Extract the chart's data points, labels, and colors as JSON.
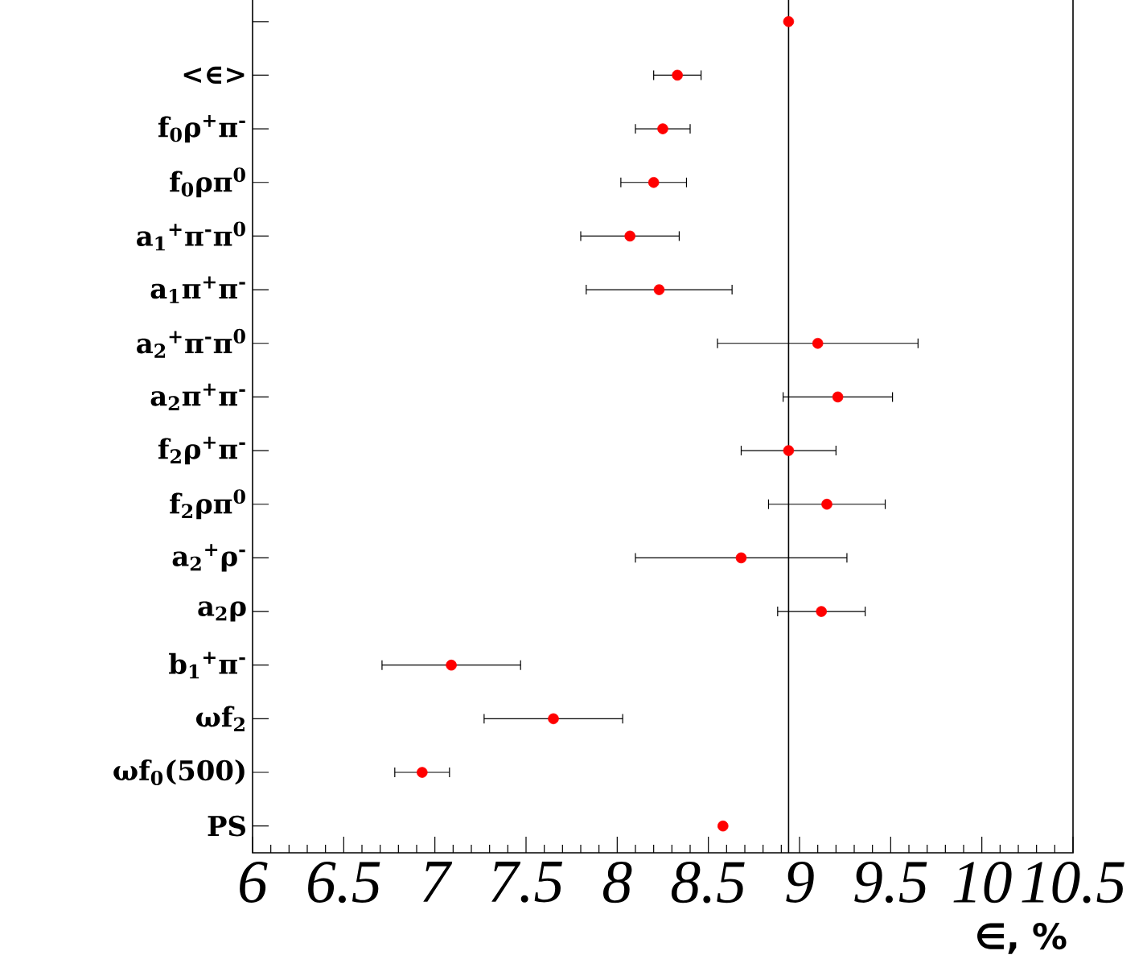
{
  "chart_data": {
    "type": "scatter",
    "orientation": "horizontal",
    "xlabel": "∈, %",
    "categories": [
      null,
      "<∈>",
      "f$_{0}$ρ$^{+}$π$^{-}$",
      "f$_{0}$ρπ$^{0}$",
      "a$_{1}$$^{+}$π$^{-}$π$^{0}$",
      "a$_{1}$π$^{+}$π$^{-}$",
      "a$_{2}$$^{+}$π$^{-}$π$^{0}$",
      "a$_{2}$π$^{+}$π$^{-}$",
      "f$_{2}$ρ$^{+}$π$^{-}$",
      "f$_{2}$ρπ$^{0}$",
      "a$_{2}$$^{+}$ρ$^{-}$",
      "a$_{2}$ρ",
      "b$_{1}$$^{+}$π$^{-}$",
      "ωf$_{2}$",
      "ωf$_{0}$(500)",
      "PS"
    ],
    "values": [
      8.94,
      8.33,
      8.25,
      8.2,
      8.07,
      8.23,
      9.1,
      9.21,
      8.94,
      9.15,
      8.68,
      9.12,
      7.09,
      7.65,
      6.93,
      8.58
    ],
    "errors": [
      null,
      0.13,
      0.15,
      0.18,
      0.27,
      0.4,
      0.55,
      0.3,
      0.26,
      0.32,
      0.58,
      0.24,
      0.38,
      0.38,
      0.15,
      null
    ],
    "color": "#ff0000",
    "xlim": [
      6,
      10.5
    ],
    "xticks": [
      6,
      6.5,
      7,
      7.5,
      8,
      8.5,
      9,
      9.5,
      10,
      10.5
    ],
    "ref_lines": [
      {
        "axis": "x",
        "value": 8.94,
        "color": "#000000"
      }
    ]
  }
}
